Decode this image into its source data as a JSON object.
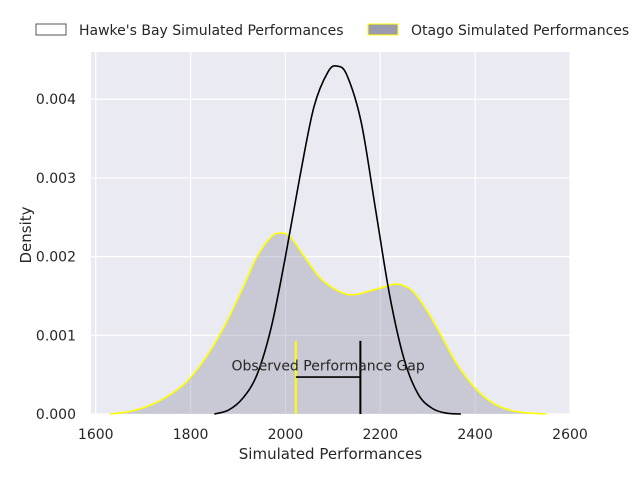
{
  "chart_data": {
    "type": "area",
    "title": "",
    "xlabel": "Simulated Performances",
    "ylabel": "Density",
    "xlim": [
      1590,
      2600
    ],
    "ylim": [
      0,
      0.0046
    ],
    "xticks": [
      1600,
      1800,
      2000,
      2200,
      2400,
      2600
    ],
    "yticks": [
      0,
      0.001,
      0.002,
      0.003,
      0.004
    ],
    "xtick_labels": [
      "1600",
      "1800",
      "2000",
      "2200",
      "2400",
      "2600"
    ],
    "ytick_labels": [
      "0.000",
      "0.001",
      "0.002",
      "0.003",
      "0.004"
    ],
    "grid": true,
    "legend_position": "top",
    "series": [
      {
        "name": "Hawke's Bay Simulated Performances",
        "style": "line",
        "color": "#000000",
        "x": [
          1850,
          1880,
          1910,
          1940,
          1970,
          2000,
          2030,
          2060,
          2090,
          2110,
          2130,
          2160,
          2190,
          2220,
          2250,
          2280,
          2310,
          2340,
          2370
        ],
        "y": [
          0.0,
          5e-05,
          0.0002,
          0.0005,
          0.0011,
          0.002,
          0.003,
          0.0039,
          0.00435,
          0.00442,
          0.0043,
          0.0037,
          0.0026,
          0.0015,
          0.0007,
          0.00025,
          7e-05,
          1e-05,
          0.0
        ]
      },
      {
        "name": "Otago Simulated Performances",
        "style": "filled",
        "color": "#9a9cad",
        "edge_color": "#ffff00",
        "x": [
          1630,
          1670,
          1710,
          1750,
          1790,
          1830,
          1870,
          1910,
          1940,
          1970,
          1990,
          2010,
          2040,
          2070,
          2100,
          2130,
          2150,
          2170,
          2200,
          2230,
          2250,
          2270,
          2300,
          2330,
          2360,
          2400,
          2440,
          2480,
          2520,
          2550
        ],
        "y": [
          0.0,
          3e-05,
          0.0001,
          0.00022,
          0.0004,
          0.0007,
          0.0011,
          0.0016,
          0.002,
          0.00225,
          0.0023,
          0.00225,
          0.002,
          0.00175,
          0.0016,
          0.00152,
          0.00152,
          0.00155,
          0.0016,
          0.00165,
          0.00163,
          0.00155,
          0.0013,
          0.00098,
          0.00065,
          0.00033,
          0.00013,
          4e-05,
          1e-05,
          0.0
        ]
      }
    ],
    "annotations": [
      {
        "text": "Observed Performance Gap",
        "x": 2090,
        "y": 0.00055
      }
    ],
    "markers": [
      {
        "name": "otago-observed",
        "x": 2022,
        "y_top": 0.00093,
        "color": "#ffff00"
      },
      {
        "name": "hawkes-bay-observed",
        "x": 2158,
        "y_top": 0.00093,
        "color": "#000000"
      }
    ],
    "gap_line": {
      "x_start": 2022,
      "x_end": 2158,
      "y": 0.00047,
      "color": "#000000"
    },
    "colors": {
      "plot_background": "#eaeaf2",
      "grid": "#ffffff",
      "hawkes_line": "#000000",
      "otago_fill": "#9a9cad",
      "otago_edge": "#ffff00"
    }
  }
}
